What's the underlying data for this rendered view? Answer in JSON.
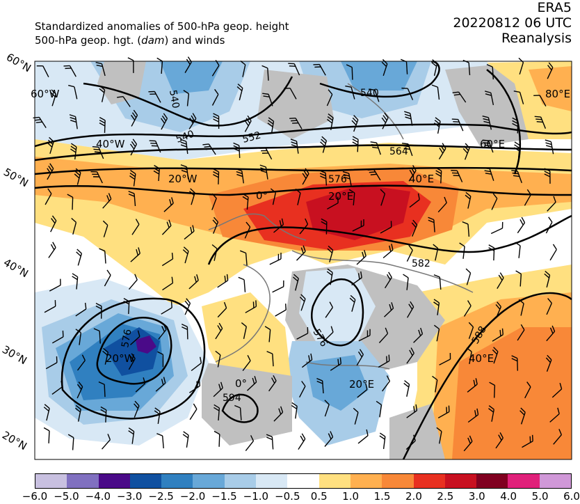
{
  "header": {
    "line1": "Standardized anomalies of 500-hPa geop. height",
    "line2_prefix": "500-hPa geop. hgt. (",
    "line2_unit": "dam",
    "line2_suffix": ") and winds",
    "source": "ERA5",
    "datetime": "20220812 06 UTC",
    "product": "Reanalysis"
  },
  "map": {
    "lat_labels": [
      "60°N",
      "50°N",
      "40°N",
      "30°N",
      "20°N"
    ],
    "lon_labels": [
      "60°W",
      "40°W",
      "20°W",
      "0°",
      "20°E",
      "40°E",
      "60°E",
      "80°E",
      "0°",
      "20°W",
      "20°E",
      "40°E"
    ],
    "contour_labels": [
      "540",
      "540",
      "540",
      "552",
      "564",
      "576",
      "582",
      "576",
      "588",
      "594",
      "576"
    ],
    "colors": {
      "land_gray": "#c0c0c0",
      "contour": "#000000",
      "coast": "#777777"
    }
  },
  "colorbar": {
    "colors": [
      "#c8c0e0",
      "#8070c0",
      "#4a0a88",
      "#1050a0",
      "#3080c0",
      "#68a8d8",
      "#a8cce8",
      "#d8e8f5",
      "#ffffff",
      "#ffe080",
      "#ffb050",
      "#f88838",
      "#e83020",
      "#c81020",
      "#800020",
      "#e0207a",
      "#d098d8"
    ],
    "ticks": [
      "−6.0",
      "−5.0",
      "−4.0",
      "−3.0",
      "−2.5",
      "−2.0",
      "−1.5",
      "−1.0",
      "−0.5",
      "0.5",
      "1.0",
      "1.5",
      "2.0",
      "2.5",
      "3.0",
      "4.0",
      "5.0",
      "6.0"
    ]
  }
}
